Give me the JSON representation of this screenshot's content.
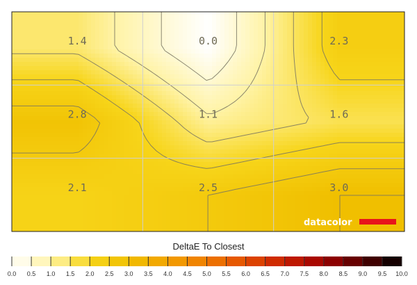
{
  "chart_data": {
    "type": "heatmap",
    "title": "",
    "rows": 3,
    "cols": 3,
    "values": [
      [
        1.4,
        0.0,
        2.3
      ],
      [
        2.8,
        1.1,
        1.6
      ],
      [
        2.1,
        2.5,
        3.0
      ]
    ],
    "labels": [
      [
        "1.4",
        "0.0",
        "2.3"
      ],
      [
        "2.8",
        "1.1",
        "1.6"
      ],
      [
        "2.1",
        "2.5",
        "3.0"
      ]
    ],
    "colorbar": {
      "label": "DeltaE To Closest",
      "min": 0.0,
      "max": 10.0,
      "step": 0.5,
      "ticks": [
        "0.0",
        "0.5",
        "1.0",
        "1.5",
        "2.0",
        "2.5",
        "3.0",
        "3.5",
        "4.0",
        "4.5",
        "5.0",
        "5.5",
        "6.0",
        "6.5",
        "7.0",
        "7.5",
        "8.0",
        "8.5",
        "9.0",
        "9.5",
        "10.0"
      ],
      "stops": [
        {
          "v": 0.0,
          "c": "#ffffff"
        },
        {
          "v": 1.0,
          "c": "#fff3a6"
        },
        {
          "v": 2.0,
          "c": "#f7d51a"
        },
        {
          "v": 3.0,
          "c": "#f0bf00"
        },
        {
          "v": 4.0,
          "c": "#f3a200"
        },
        {
          "v": 5.0,
          "c": "#ef7a00"
        },
        {
          "v": 6.0,
          "c": "#e34d00"
        },
        {
          "v": 7.0,
          "c": "#c82000"
        },
        {
          "v": 8.0,
          "c": "#9e0000"
        },
        {
          "v": 9.0,
          "c": "#540000"
        },
        {
          "v": 10.0,
          "c": "#000000"
        }
      ]
    },
    "contours": true,
    "grid": true
  },
  "watermark": {
    "text": "datacolor",
    "bar_color": "#e8151b"
  }
}
